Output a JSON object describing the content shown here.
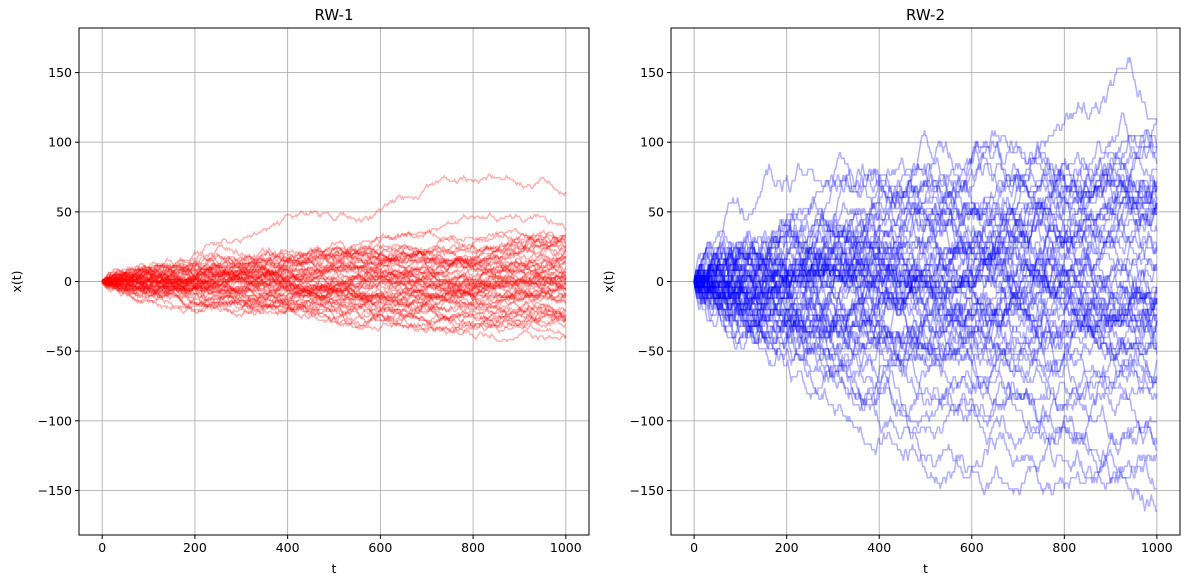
{
  "chart_data": [
    {
      "type": "line",
      "title": "RW-1",
      "xlabel": "t",
      "ylabel": "x(t)",
      "xlim": [
        -50,
        1050
      ],
      "ylim": [
        -182,
        182
      ],
      "xticks": [
        0,
        200,
        400,
        600,
        800,
        1000
      ],
      "yticks": [
        -150,
        -100,
        -50,
        0,
        50,
        100,
        150
      ],
      "xtick_labels": [
        "0",
        "200",
        "400",
        "600",
        "800",
        "1000"
      ],
      "ytick_labels": [
        "−150",
        "−100",
        "−50",
        "0",
        "50",
        "100",
        "150"
      ],
      "grid": true,
      "color": "#ff0000",
      "alpha": 0.3,
      "num_walks": 60,
      "steps": 1000,
      "observed_range": [
        -73,
        77
      ],
      "approx_final_values_range": [
        -68,
        75
      ]
    },
    {
      "type": "line",
      "title": "RW-2",
      "xlabel": "t",
      "ylabel": "x(t)",
      "xlim": [
        -50,
        1050
      ],
      "ylim": [
        -182,
        182
      ],
      "xticks": [
        0,
        200,
        400,
        600,
        800,
        1000
      ],
      "yticks": [
        -150,
        -100,
        -50,
        0,
        50,
        100,
        150
      ],
      "xtick_labels": [
        "0",
        "200",
        "400",
        "600",
        "800",
        "1000"
      ],
      "ytick_labels": [
        "−150",
        "−100",
        "−50",
        "0",
        "50",
        "100",
        "150"
      ],
      "grid": true,
      "color": "#0000ff",
      "alpha": 0.3,
      "num_walks": 60,
      "steps": 1000,
      "observed_range": [
        -165,
        135
      ],
      "approx_final_values_range": [
        -165,
        128
      ]
    }
  ]
}
